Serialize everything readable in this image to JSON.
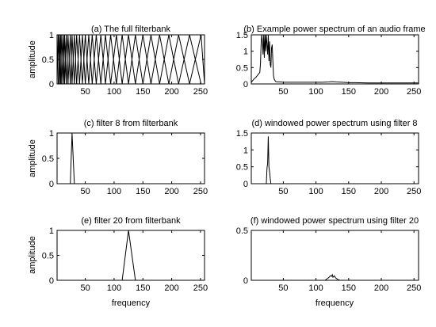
{
  "chart_data": [
    {
      "id": "a",
      "type": "line",
      "title": "(a) The full filterbank",
      "xlabel": "",
      "ylabel": "amplitude",
      "xlim": [
        1,
        257
      ],
      "ylim": [
        0,
        1
      ],
      "xticks": [
        50,
        100,
        150,
        200,
        250
      ],
      "xtick_labels": [
        "50",
        "100",
        "150",
        "200",
        "250"
      ],
      "yticks": [
        0,
        0.5,
        1
      ],
      "ytick_labels": [
        "0",
        "0.5",
        "1"
      ],
      "grid": false,
      "series_kind": "triangular_filterbank",
      "filter_center_bins": [
        1,
        3,
        5,
        7,
        9,
        12,
        14,
        17,
        20,
        24,
        27,
        31,
        35,
        40,
        45,
        50,
        56,
        62,
        69,
        77,
        85,
        94,
        104,
        114,
        125,
        137,
        150,
        164,
        179,
        195,
        212,
        231,
        251,
        257
      ]
    },
    {
      "id": "b",
      "type": "line",
      "title": "(b) Example power spectrum of an audio frame",
      "xlabel": "",
      "ylabel": "",
      "xlim": [
        1,
        257
      ],
      "ylim": [
        0,
        1.5
      ],
      "xticks": [
        50,
        100,
        150,
        200,
        250
      ],
      "xtick_labels": [
        "50",
        "100",
        "150",
        "200",
        "250"
      ],
      "yticks": [
        0,
        0.5,
        1,
        1.5
      ],
      "ytick_labels": [
        "0",
        "0.5",
        "1",
        "1.5"
      ],
      "grid": false,
      "x": [
        1,
        5,
        8,
        10,
        12,
        14,
        15,
        16,
        17,
        18,
        19,
        20,
        21,
        22,
        23,
        24,
        25,
        26,
        27,
        28,
        29,
        30,
        31,
        32,
        33,
        34,
        35,
        36,
        38,
        40,
        45,
        50,
        60,
        70,
        80,
        90,
        100,
        110,
        120,
        125,
        130,
        140,
        150,
        160,
        180,
        200,
        220,
        240,
        257
      ],
      "y": [
        0.05,
        0.15,
        0.2,
        0.25,
        0.3,
        0.35,
        0.6,
        1.2,
        1.5,
        1.3,
        0.9,
        1.5,
        0.8,
        1.5,
        1.0,
        1.5,
        1.2,
        0.9,
        1.5,
        0.7,
        1.3,
        0.6,
        0.5,
        1.1,
        1.2,
        0.7,
        0.25,
        0.15,
        0.08,
        0.06,
        0.06,
        0.05,
        0.05,
        0.05,
        0.05,
        0.05,
        0.05,
        0.05,
        0.06,
        0.07,
        0.06,
        0.05,
        0.04,
        0.04,
        0.03,
        0.03,
        0.03,
        0.03,
        0.03
      ]
    },
    {
      "id": "c",
      "type": "line",
      "title": "(c) filter 8 from filterbank",
      "xlabel": "",
      "ylabel": "amplitude",
      "xlim": [
        1,
        257
      ],
      "ylim": [
        0,
        1
      ],
      "xticks": [
        50,
        100,
        150,
        200,
        250
      ],
      "xtick_labels": [
        "50",
        "100",
        "150",
        "200",
        "250"
      ],
      "yticks": [
        0,
        0.5,
        1
      ],
      "ytick_labels": [
        "0",
        "0.5",
        "1"
      ],
      "grid": false,
      "x": [
        1,
        24,
        27,
        31,
        257
      ],
      "y": [
        0,
        0,
        1,
        0,
        0
      ]
    },
    {
      "id": "d",
      "type": "line",
      "title": "(d) windowed power spectrum using filter 8",
      "xlabel": "",
      "ylabel": "",
      "xlim": [
        1,
        257
      ],
      "ylim": [
        0,
        1.5
      ],
      "xticks": [
        50,
        100,
        150,
        200,
        250
      ],
      "xtick_labels": [
        "50",
        "100",
        "150",
        "200",
        "250"
      ],
      "yticks": [
        0,
        0.5,
        1,
        1.5
      ],
      "ytick_labels": [
        "0",
        "0.5",
        "1",
        "1.5"
      ],
      "grid": false,
      "x": [
        1,
        24,
        25,
        26,
        27,
        28,
        29,
        30,
        31,
        257
      ],
      "y": [
        0,
        0,
        0.45,
        0.6,
        1.4,
        0.5,
        0.35,
        0.15,
        0,
        0
      ]
    },
    {
      "id": "e",
      "type": "line",
      "title": "(e) filter 20 from filterbank",
      "xlabel": "frequency",
      "ylabel": "amplitude",
      "xlim": [
        1,
        257
      ],
      "ylim": [
        0,
        1
      ],
      "xticks": [
        50,
        100,
        150,
        200,
        250
      ],
      "xtick_labels": [
        "50",
        "100",
        "150",
        "200",
        "250"
      ],
      "yticks": [
        0,
        0.5,
        1
      ],
      "ytick_labels": [
        "0",
        "0.5",
        "1"
      ],
      "grid": false,
      "x": [
        1,
        114,
        125,
        137,
        257
      ],
      "y": [
        0,
        0,
        1,
        0,
        0
      ]
    },
    {
      "id": "f",
      "type": "line",
      "title": "(f) windowed power spectrum using filter 20",
      "xlabel": "frequency",
      "ylabel": "",
      "xlim": [
        1,
        257
      ],
      "ylim": [
        0,
        0.5
      ],
      "xticks": [
        50,
        100,
        150,
        200,
        250
      ],
      "xtick_labels": [
        "50",
        "100",
        "150",
        "200",
        "250"
      ],
      "yticks": [
        0,
        0.5
      ],
      "ytick_labels": [
        "0",
        "0.5"
      ],
      "grid": false,
      "x": [
        1,
        114,
        116,
        118,
        120,
        122,
        124,
        125,
        126,
        128,
        130,
        132,
        134,
        137,
        257
      ],
      "y": [
        0,
        0,
        0.01,
        0.02,
        0.03,
        0.045,
        0.04,
        0.055,
        0.03,
        0.045,
        0.025,
        0.015,
        0.005,
        0,
        0
      ]
    }
  ]
}
